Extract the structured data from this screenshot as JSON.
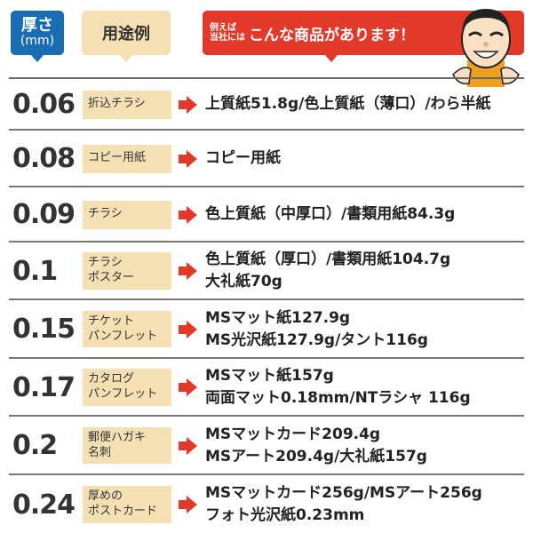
{
  "header": {
    "thickness_label": "厚さ",
    "thickness_unit": "(mm)",
    "usage_label": "用途例",
    "products_prefix_1": "例えば",
    "products_prefix_2": "当社には",
    "products_label": "こんな商品があります！"
  },
  "colors": {
    "thickness_header": "#1a6cb3",
    "usage_bg": "#f4e0b2",
    "accent_red": "#e23a2a"
  },
  "rows": [
    {
      "thickness": "0.06",
      "usage": [
        "折込チラシ"
      ],
      "products": [
        "上質紙51.8g/色上質紙（薄口）/わら半紙"
      ]
    },
    {
      "thickness": "0.08",
      "usage": [
        "コピー用紙"
      ],
      "products": [
        "コピー用紙"
      ]
    },
    {
      "thickness": "0.09",
      "usage": [
        "チラシ"
      ],
      "products": [
        "色上質紙（中厚口）/書類用紙84.3g"
      ]
    },
    {
      "thickness": "0.1",
      "usage": [
        "チラシ",
        "ポスター"
      ],
      "products": [
        "色上質紙（厚口）/書類用紙104.7g",
        "大礼紙70g"
      ]
    },
    {
      "thickness": "0.15",
      "usage": [
        "チケット",
        "パンフレット"
      ],
      "products": [
        "MSマット紙127.9g",
        "MS光沢紙127.9g/タント116g"
      ]
    },
    {
      "thickness": "0.17",
      "usage": [
        "カタログ",
        "パンフレット"
      ],
      "products": [
        "MSマット紙157g",
        "両面マット0.18mm/NTラシャ 116g"
      ]
    },
    {
      "thickness": "0.2",
      "usage": [
        "郵便ハガキ",
        "名刺"
      ],
      "products": [
        "MSマットカード209.4g",
        "MSアート209.4g/大礼紙157g"
      ]
    },
    {
      "thickness": "0.24",
      "usage": [
        "厚めの",
        "ポストカード"
      ],
      "products": [
        "MSマットカード256g/MSアート256g",
        "フォト光沢紙0.23mm"
      ]
    }
  ]
}
